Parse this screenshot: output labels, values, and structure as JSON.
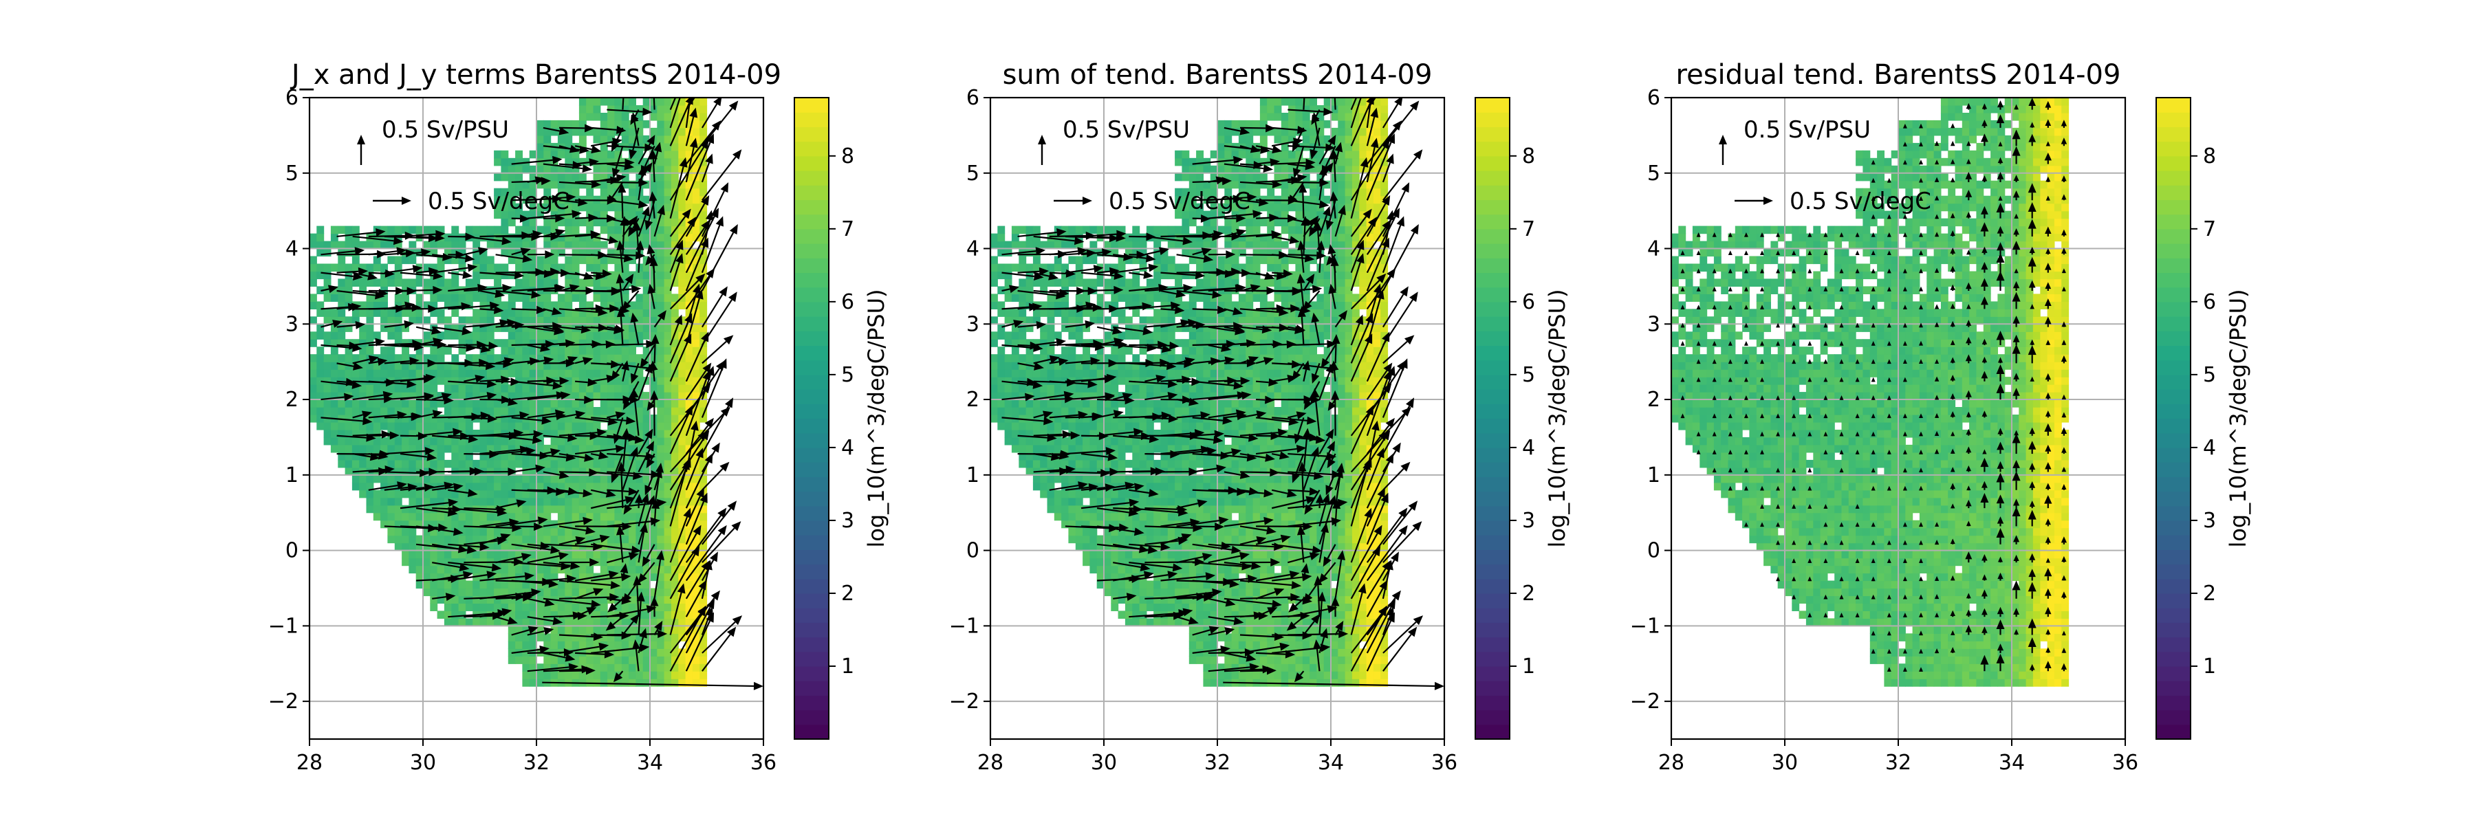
{
  "figure": {
    "background": "#ffffff",
    "grid": true,
    "grid_color": "#b0b0b0",
    "arrow_color": "#000000"
  },
  "chart_data": [
    {
      "type": "heatmap",
      "title": "J_x and J_y terms BarentsS 2014-09",
      "xlim": [
        28,
        36
      ],
      "ylim": [
        -2.5,
        6
      ],
      "xticks": [
        28,
        30,
        32,
        34,
        36
      ],
      "yticks": [
        -2,
        -1,
        0,
        1,
        2,
        3,
        4,
        5,
        6
      ],
      "xtick_labels": [
        "28",
        "30",
        "32",
        "34",
        "36"
      ],
      "ytick_labels": [
        "−2",
        "−1",
        "0",
        "1",
        "2",
        "3",
        "4",
        "5",
        "6"
      ],
      "quiver_keys": [
        {
          "label": "0.5 Sv/PSU",
          "direction": "up"
        },
        {
          "label": "0.5 Sv/degC",
          "direction": "right"
        }
      ],
      "colorbar": {
        "label": "log_10(m^3/degC/PSU)",
        "range": [
          0,
          8.8
        ],
        "ticks": [
          1,
          2,
          3,
          4,
          5,
          6,
          7,
          8
        ],
        "tick_labels": [
          "1",
          "2",
          "3",
          "4",
          "5",
          "6",
          "7",
          "8"
        ],
        "colormap": "viridis"
      },
      "field": "flux"
    },
    {
      "type": "heatmap",
      "title": "sum of tend. BarentsS 2014-09",
      "xlim": [
        28,
        36
      ],
      "ylim": [
        -2.5,
        6
      ],
      "xticks": [
        28,
        30,
        32,
        34,
        36
      ],
      "yticks": [
        -2,
        -1,
        0,
        1,
        2,
        3,
        4,
        5,
        6
      ],
      "xtick_labels": [
        "28",
        "30",
        "32",
        "34",
        "36"
      ],
      "ytick_labels": [
        "−2",
        "−1",
        "0",
        "1",
        "2",
        "3",
        "4",
        "5",
        "6"
      ],
      "quiver_keys": [
        {
          "label": "0.5 Sv/PSU",
          "direction": "up"
        },
        {
          "label": "0.5 Sv/degC",
          "direction": "right"
        }
      ],
      "colorbar": {
        "label": "log_10(m^3/degC/PSU)",
        "range": [
          0,
          8.8
        ],
        "ticks": [
          1,
          2,
          3,
          4,
          5,
          6,
          7,
          8
        ],
        "tick_labels": [
          "1",
          "2",
          "3",
          "4",
          "5",
          "6",
          "7",
          "8"
        ],
        "colormap": "viridis"
      },
      "field": "flux"
    },
    {
      "type": "heatmap",
      "title": "residual tend. BarentsS 2014-09",
      "xlim": [
        28,
        36
      ],
      "ylim": [
        -2.5,
        6
      ],
      "xticks": [
        28,
        30,
        32,
        34,
        36
      ],
      "yticks": [
        -2,
        -1,
        0,
        1,
        2,
        3,
        4,
        5,
        6
      ],
      "xtick_labels": [
        "28",
        "30",
        "32",
        "34",
        "36"
      ],
      "ytick_labels": [
        "−2",
        "−1",
        "0",
        "1",
        "2",
        "3",
        "4",
        "5",
        "6"
      ],
      "quiver_keys": [
        {
          "label": "0.5 Sv/PSU",
          "direction": "up"
        },
        {
          "label": "0.5 Sv/degC",
          "direction": "right"
        }
      ],
      "colorbar": {
        "label": "log_10(m^3/degC/PSU)",
        "range": [
          0,
          8.8
        ],
        "ticks": [
          1,
          2,
          3,
          4,
          5,
          6,
          7,
          8
        ],
        "tick_labels": [
          "1",
          "2",
          "3",
          "4",
          "5",
          "6",
          "7",
          "8"
        ],
        "colormap": "viridis"
      },
      "field": "residual"
    }
  ]
}
